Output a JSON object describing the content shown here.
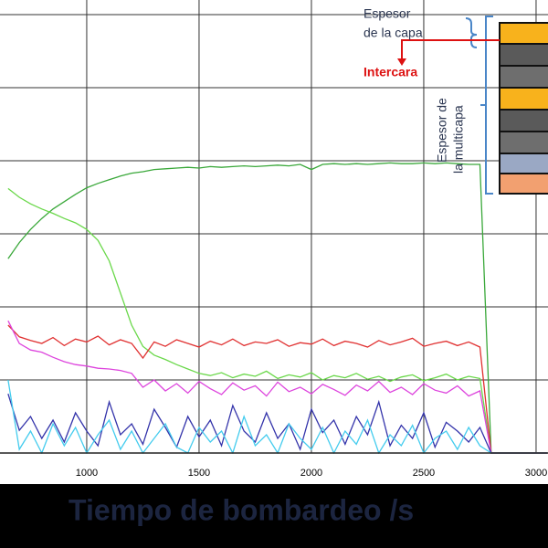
{
  "chart_data": {
    "type": "line",
    "x_label": "Tiempo de bombardeo /s",
    "annotations": [
      "Espesor",
      "de la capa",
      "Intercara",
      "Espesor de",
      "la multicapa"
    ],
    "xlim": [
      614,
      3053
    ],
    "ylim": [
      0,
      6.2
    ],
    "xticks": [
      1000,
      1500,
      2000,
      2500,
      3000
    ],
    "yticks": [
      0,
      1,
      2,
      3,
      4,
      5,
      6
    ],
    "grid": true,
    "x": [
      650,
      700,
      750,
      800,
      850,
      900,
      950,
      1000,
      1050,
      1100,
      1150,
      1200,
      1250,
      1300,
      1350,
      1400,
      1450,
      1500,
      1550,
      1600,
      1650,
      1700,
      1750,
      1800,
      1850,
      1900,
      1950,
      2000,
      2050,
      2100,
      2150,
      2200,
      2250,
      2300,
      2350,
      2400,
      2450,
      2500,
      2550,
      2600,
      2650,
      2700,
      2750,
      2800,
      2850,
      2900,
      2950,
      3000,
      3050
    ],
    "series": [
      {
        "color": "#3aa83a",
        "values": [
          2.66,
          2.88,
          3.06,
          3.21,
          3.34,
          3.44,
          3.54,
          3.63,
          3.69,
          3.74,
          3.79,
          3.83,
          3.85,
          3.88,
          3.89,
          3.9,
          3.91,
          3.9,
          3.92,
          3.91,
          3.92,
          3.93,
          3.92,
          3.93,
          3.94,
          3.93,
          3.95,
          3.88,
          3.95,
          3.96,
          3.95,
          3.96,
          3.95,
          3.96,
          3.97,
          3.96,
          3.96,
          3.97,
          3.96,
          3.97,
          3.96,
          3.95,
          3.95,
          0,
          0,
          0,
          0,
          0,
          0
        ]
      },
      {
        "color": "#6ad84a",
        "values": [
          3.62,
          3.5,
          3.41,
          3.34,
          3.28,
          3.21,
          3.15,
          3.06,
          2.91,
          2.63,
          2.19,
          1.75,
          1.46,
          1.34,
          1.28,
          1.21,
          1.15,
          1.09,
          1.06,
          1.1,
          1.03,
          1.08,
          1.05,
          1.12,
          1.02,
          1.07,
          1.04,
          1.1,
          1.0,
          1.06,
          1.03,
          1.09,
          1.01,
          1.05,
          0.98,
          1.04,
          1.07,
          0.99,
          1.03,
          1.08,
          1.0,
          1.05,
          1.02,
          0,
          0,
          0,
          0,
          0,
          0
        ]
      },
      {
        "color": "#e03030",
        "values": [
          1.75,
          1.59,
          1.54,
          1.5,
          1.58,
          1.47,
          1.56,
          1.52,
          1.6,
          1.48,
          1.55,
          1.5,
          1.3,
          1.52,
          1.46,
          1.55,
          1.5,
          1.45,
          1.53,
          1.48,
          1.56,
          1.47,
          1.52,
          1.5,
          1.55,
          1.46,
          1.51,
          1.49,
          1.56,
          1.47,
          1.53,
          1.5,
          1.45,
          1.54,
          1.48,
          1.52,
          1.57,
          1.46,
          1.5,
          1.53,
          1.47,
          1.52,
          1.45,
          0,
          0,
          0,
          0,
          0,
          0
        ]
      },
      {
        "color": "#dd44dd",
        "values": [
          1.81,
          1.5,
          1.41,
          1.38,
          1.31,
          1.25,
          1.21,
          1.19,
          1.16,
          1.15,
          1.13,
          1.09,
          0.9,
          1.0,
          0.85,
          0.95,
          0.82,
          0.98,
          0.88,
          0.8,
          0.96,
          0.86,
          0.92,
          0.78,
          0.97,
          0.84,
          0.9,
          0.81,
          0.94,
          0.87,
          0.79,
          0.93,
          0.85,
          0.98,
          0.83,
          0.9,
          0.8,
          0.95,
          0.86,
          0.82,
          0.92,
          0.78,
          0.85,
          0,
          0,
          0,
          0,
          0,
          0
        ]
      },
      {
        "color": "#3333aa",
        "values": [
          0.81,
          0.31,
          0.5,
          0.2,
          0.45,
          0.15,
          0.55,
          0.3,
          0.1,
          0.7,
          0.25,
          0.4,
          0.12,
          0.6,
          0.35,
          0.08,
          0.5,
          0.22,
          0.45,
          0.1,
          0.65,
          0.3,
          0.15,
          0.55,
          0.2,
          0.4,
          0.05,
          0.6,
          0.28,
          0.45,
          0.12,
          0.5,
          0.25,
          0.7,
          0.1,
          0.38,
          0.2,
          0.55,
          0.08,
          0.42,
          0.3,
          0.15,
          0.35,
          0,
          0,
          0,
          0,
          0,
          0
        ]
      },
      {
        "color": "#44ccee",
        "values": [
          1,
          0.05,
          0.3,
          0,
          0.4,
          0.1,
          0.35,
          0,
          0.25,
          0.45,
          0.05,
          0.3,
          0,
          0.2,
          0.4,
          0.08,
          0,
          0.35,
          0.15,
          0.3,
          0,
          0.5,
          0.1,
          0.25,
          0,
          0.4,
          0.2,
          0.05,
          0.35,
          0,
          0.3,
          0.12,
          0.45,
          0,
          0.25,
          0.1,
          0.38,
          0,
          0.2,
          0.3,
          0.05,
          0.35,
          0.1,
          0,
          0,
          0,
          0,
          0,
          0
        ]
      }
    ]
  }
}
